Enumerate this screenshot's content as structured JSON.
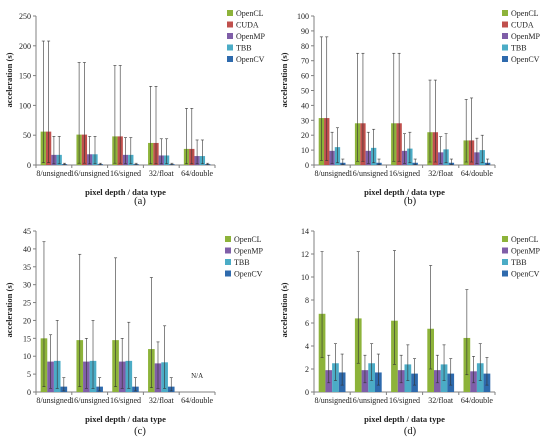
{
  "figure": {
    "panels": [
      {
        "label": "(a)"
      },
      {
        "label": "(b)"
      },
      {
        "label": "(c)"
      },
      {
        "label": "(d)"
      }
    ]
  },
  "chart_data": [
    {
      "type": "bar",
      "panel_label": "(a)",
      "title": "",
      "xlabel": "pixel depth / data type",
      "ylabel": "acceleration (s)",
      "ylim": [
        0,
        250
      ],
      "yticks": [
        0,
        50,
        100,
        150,
        200,
        250
      ],
      "grid": false,
      "legend": "top-right",
      "error_bars": true,
      "categories": [
        "8/unsigned",
        "16/unsigned",
        "16/signed",
        "32/float",
        "64/double"
      ],
      "series": [
        {
          "name": "OpenCL",
          "color": "#8db33a",
          "values": [
            56,
            51,
            48,
            37,
            27
          ],
          "error_low": [
            4,
            3,
            3,
            2,
            2
          ],
          "error_high": [
            208,
            172,
            167,
            132,
            95
          ]
        },
        {
          "name": "CUDA",
          "color": "#c0504d",
          "values": [
            56,
            51,
            48,
            37,
            27
          ],
          "error_low": [
            4,
            3,
            3,
            2,
            2
          ],
          "error_high": [
            208,
            172,
            167,
            132,
            95
          ]
        },
        {
          "name": "OpenMP",
          "color": "#7f5ea8",
          "values": [
            17,
            18,
            17,
            16,
            15
          ],
          "error_low": [
            2,
            2,
            2,
            2,
            2
          ],
          "error_high": [
            48,
            48,
            46,
            44,
            42
          ]
        },
        {
          "name": "TBB",
          "color": "#4bacc6",
          "values": [
            17,
            18,
            17,
            16,
            15
          ],
          "error_low": [
            2,
            2,
            2,
            2,
            2
          ],
          "error_high": [
            48,
            48,
            46,
            44,
            42
          ]
        },
        {
          "name": "OpenCV",
          "color": "#2e6aad",
          "values": [
            1.5,
            1.5,
            1.5,
            1.5,
            1.5
          ],
          "error_low": [
            0.5,
            0.5,
            0.5,
            0.5,
            0.5
          ],
          "error_high": [
            3,
            3,
            3,
            3,
            3
          ]
        }
      ],
      "annotations": []
    },
    {
      "type": "bar",
      "panel_label": "(b)",
      "title": "",
      "xlabel": "pixel depth / data type",
      "ylabel": "acceleration (s)",
      "ylim": [
        0,
        100
      ],
      "yticks": [
        0,
        10,
        20,
        30,
        40,
        50,
        60,
        70,
        80,
        90,
        100
      ],
      "grid": false,
      "legend": "top-right",
      "error_bars": true,
      "categories": [
        "8/unsigned",
        "16/unsigned",
        "16/signed",
        "32/float",
        "64/double"
      ],
      "series": [
        {
          "name": "OpenCL",
          "color": "#8db33a",
          "values": [
            31.5,
            28,
            28,
            22,
            16.5
          ],
          "error_low": [
            3,
            2.5,
            2.5,
            2,
            2
          ],
          "error_high": [
            86,
            75,
            75,
            57,
            44
          ]
        },
        {
          "name": "CUDA",
          "color": "#c0504d",
          "values": [
            31.5,
            28,
            28,
            22,
            16.5
          ],
          "error_low": [
            3,
            2.5,
            2.5,
            2,
            2
          ],
          "error_high": [
            86,
            75,
            75,
            57,
            45
          ]
        },
        {
          "name": "OpenMP",
          "color": "#7f5ea8",
          "values": [
            9.5,
            9.5,
            9.5,
            8.5,
            8.5
          ],
          "error_low": [
            1,
            1,
            1,
            1,
            1
          ],
          "error_high": [
            22,
            22,
            21,
            19,
            18
          ]
        },
        {
          "name": "TBB",
          "color": "#4bacc6",
          "values": [
            12,
            11.5,
            11,
            10.5,
            10
          ],
          "error_low": [
            1.5,
            1.5,
            1.5,
            1.5,
            1.5
          ],
          "error_high": [
            25,
            24,
            22,
            21,
            20
          ]
        },
        {
          "name": "OpenCV",
          "color": "#2e6aad",
          "values": [
            1.5,
            1.5,
            1.5,
            1.5,
            1.5
          ],
          "error_low": [
            0.3,
            0.3,
            0.3,
            0.3,
            0.3
          ],
          "error_high": [
            4,
            4,
            4,
            4,
            4
          ]
        }
      ],
      "annotations": []
    },
    {
      "type": "bar",
      "panel_label": "(c)",
      "title": "",
      "xlabel": "pixel depth / data type",
      "ylabel": "acceleration (s)",
      "ylim": [
        0,
        45
      ],
      "yticks": [
        0,
        5,
        10,
        15,
        20,
        25,
        30,
        35,
        40,
        45
      ],
      "grid": false,
      "legend": "top-right",
      "error_bars": true,
      "categories": [
        "8/unsigned",
        "16/unsigned",
        "16/signed",
        "32/float",
        "64/double"
      ],
      "series": [
        {
          "name": "OpenCL",
          "color": "#8db33a",
          "values": [
            15,
            14.5,
            14.5,
            12,
            null
          ],
          "error_low": [
            1.5,
            1.5,
            1.5,
            1.2,
            null
          ],
          "error_high": [
            42,
            38.5,
            37.5,
            32,
            null
          ]
        },
        {
          "name": "OpenMP",
          "color": "#7f5ea8",
          "values": [
            8.5,
            8.5,
            8.5,
            8,
            null
          ],
          "error_low": [
            1,
            1,
            1,
            1,
            null
          ],
          "error_high": [
            16,
            15,
            15,
            14,
            null
          ]
        },
        {
          "name": "TBB",
          "color": "#4bacc6",
          "values": [
            8.7,
            8.7,
            8.7,
            8.3,
            null
          ],
          "error_low": [
            1,
            1,
            1,
            1,
            null
          ],
          "error_high": [
            20,
            20,
            19.5,
            18.5,
            null
          ]
        },
        {
          "name": "OpenCV",
          "color": "#2e6aad",
          "values": [
            1.5,
            1.5,
            1.5,
            1.5,
            null
          ],
          "error_low": [
            0.3,
            0.3,
            0.3,
            0.3,
            null
          ],
          "error_high": [
            4,
            4,
            4,
            4,
            null
          ]
        }
      ],
      "annotations": [
        {
          "category": "64/double",
          "text": "N/A"
        }
      ]
    },
    {
      "type": "bar",
      "panel_label": "(d)",
      "title": "",
      "xlabel": "pixel depth / data type",
      "ylabel": "acceleration (s)",
      "ylim": [
        0,
        14
      ],
      "yticks": [
        0,
        2,
        4,
        6,
        8,
        10,
        12,
        14
      ],
      "grid": false,
      "legend": "top-right",
      "error_bars": true,
      "categories": [
        "8/unsigned",
        "16/unsigned",
        "16/signed",
        "32/float",
        "64/double"
      ],
      "series": [
        {
          "name": "OpenCL",
          "color": "#8db33a",
          "values": [
            6.8,
            6.4,
            6.2,
            5.5,
            4.7
          ],
          "error_low": [
            3,
            2.5,
            2.4,
            2,
            1.5
          ],
          "error_high": [
            12.2,
            12.2,
            12.3,
            11,
            8.9
          ]
        },
        {
          "name": "OpenMP",
          "color": "#7f5ea8",
          "values": [
            1.9,
            1.9,
            1.9,
            1.9,
            1.8
          ],
          "error_low": [
            0.8,
            0.8,
            0.8,
            0.8,
            0.8
          ],
          "error_high": [
            3.2,
            3.2,
            3.2,
            3.2,
            3.1
          ]
        },
        {
          "name": "TBB",
          "color": "#4bacc6",
          "values": [
            2.5,
            2.5,
            2.4,
            2.4,
            2.5
          ],
          "error_low": [
            1,
            1,
            1,
            1,
            1
          ],
          "error_high": [
            4.2,
            4.2,
            4.1,
            4.1,
            4.2
          ]
        },
        {
          "name": "OpenCV",
          "color": "#2e6aad",
          "values": [
            1.7,
            1.7,
            1.6,
            1.6,
            1.6
          ],
          "error_low": [
            0.6,
            0.6,
            0.6,
            0.6,
            0.6
          ],
          "error_high": [
            3.3,
            3.3,
            2.9,
            2.9,
            3
          ]
        }
      ],
      "annotations": []
    }
  ]
}
